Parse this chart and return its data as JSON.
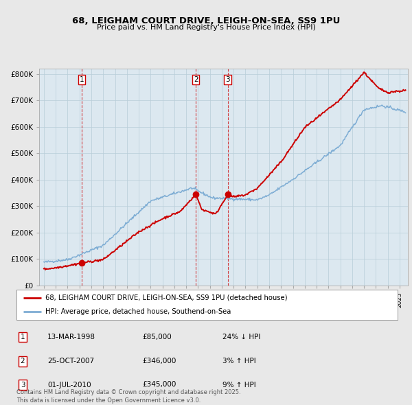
{
  "title_line1": "68, LEIGHAM COURT DRIVE, LEIGH-ON-SEA, SS9 1PU",
  "title_line2": "Price paid vs. HM Land Registry's House Price Index (HPI)",
  "sale_color": "#cc0000",
  "hpi_color": "#7eadd4",
  "background_color": "#e8e8e8",
  "plot_bg_color": "#dce8f0",
  "sale_dates": [
    1998.2,
    2007.82,
    2010.5
  ],
  "sale_prices": [
    85000,
    346000,
    345000
  ],
  "sale_labels": [
    "1",
    "2",
    "3"
  ],
  "legend_sale": "68, LEIGHAM COURT DRIVE, LEIGH-ON-SEA, SS9 1PU (detached house)",
  "legend_hpi": "HPI: Average price, detached house, Southend-on-Sea",
  "table_entries": [
    {
      "num": "1",
      "date": "13-MAR-1998",
      "price": "£85,000",
      "rel": "24% ↓ HPI"
    },
    {
      "num": "2",
      "date": "25-OCT-2007",
      "price": "£346,000",
      "rel": "3% ↑ HPI"
    },
    {
      "num": "3",
      "date": "01-JUL-2010",
      "price": "£345,000",
      "rel": "9% ↑ HPI"
    }
  ],
  "footer": "Contains HM Land Registry data © Crown copyright and database right 2025.\nThis data is licensed under the Open Government Licence v3.0.",
  "ylim": [
    0,
    820000
  ],
  "xlim_start": 1994.6,
  "xlim_end": 2025.7,
  "yticks": [
    0,
    100000,
    200000,
    300000,
    400000,
    500000,
    600000,
    700000,
    800000
  ],
  "ytick_labels": [
    "£0",
    "£100K",
    "£200K",
    "£300K",
    "£400K",
    "£500K",
    "£600K",
    "£700K",
    "£800K"
  ]
}
